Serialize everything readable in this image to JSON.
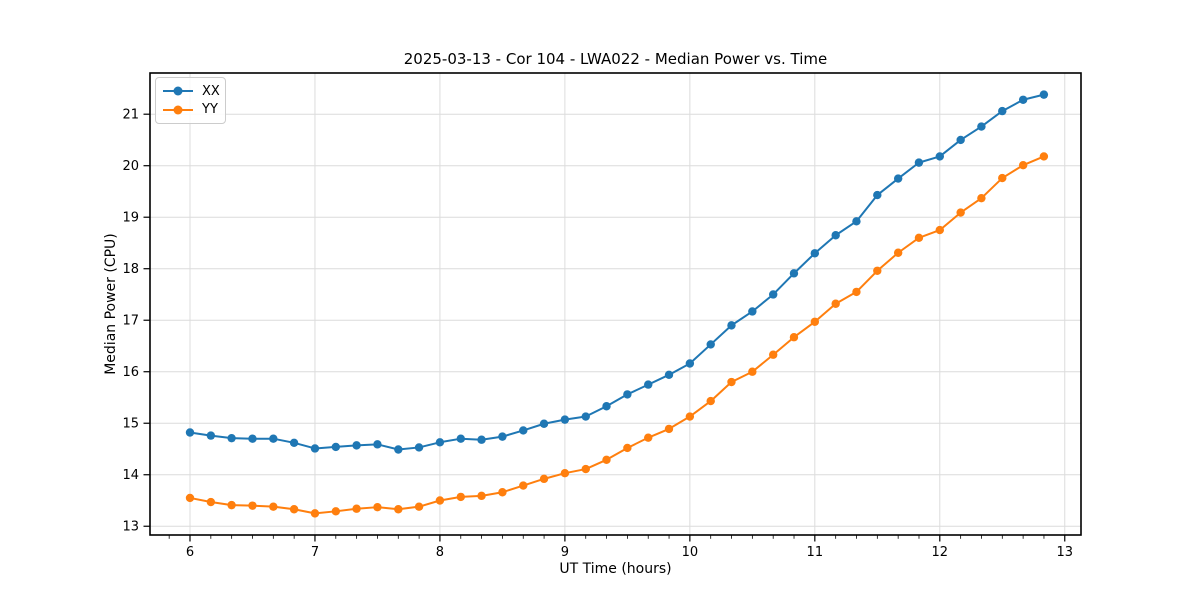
{
  "figure": {
    "background": "#ffffff",
    "spine_color": "#000000",
    "grid_color": "#dcdcdc",
    "tick_color": "#000000"
  },
  "chart_data": {
    "type": "line",
    "title": "2025-03-13 - Cor 104 - LWA022 - Median Power vs. Time",
    "xlabel": "UT Time (hours)",
    "ylabel": "Median Power (CPU)",
    "grid": true,
    "legend_position": "upper left",
    "xlim": [
      5.68,
      13.13
    ],
    "ylim": [
      12.83,
      21.8
    ],
    "x_ticks": [
      6,
      7,
      8,
      9,
      10,
      11,
      12,
      13
    ],
    "y_ticks": [
      13,
      14,
      15,
      16,
      17,
      18,
      19,
      20,
      21
    ],
    "x_minor_tick_step": 0.16667,
    "x": [
      6.0,
      6.167,
      6.333,
      6.5,
      6.667,
      6.833,
      7.0,
      7.167,
      7.333,
      7.5,
      7.667,
      7.833,
      8.0,
      8.167,
      8.333,
      8.5,
      8.667,
      8.833,
      9.0,
      9.167,
      9.333,
      9.5,
      9.667,
      9.833,
      10.0,
      10.167,
      10.333,
      10.5,
      10.667,
      10.833,
      11.0,
      11.167,
      11.333,
      11.5,
      11.667,
      11.833,
      12.0,
      12.167,
      12.333,
      12.5,
      12.667,
      12.833
    ],
    "series": [
      {
        "name": "XX",
        "color": "#1f77b4",
        "values": [
          14.82,
          14.76,
          14.71,
          14.7,
          14.7,
          14.62,
          14.51,
          14.54,
          14.57,
          14.59,
          14.49,
          14.53,
          14.63,
          14.7,
          14.68,
          14.74,
          14.86,
          14.99,
          15.07,
          15.13,
          15.33,
          15.56,
          15.75,
          15.94,
          16.16,
          16.53,
          16.9,
          17.17,
          17.5,
          17.91,
          18.3,
          18.65,
          18.92,
          19.43,
          19.75,
          20.06,
          20.18,
          20.5,
          20.76,
          21.06,
          21.28,
          21.38
        ]
      },
      {
        "name": "YY",
        "color": "#ff7f0e",
        "values": [
          13.55,
          13.47,
          13.41,
          13.4,
          13.38,
          13.33,
          13.25,
          13.29,
          13.34,
          13.37,
          13.33,
          13.38,
          13.5,
          13.57,
          13.59,
          13.66,
          13.79,
          13.92,
          14.03,
          14.11,
          14.29,
          14.52,
          14.72,
          14.89,
          15.13,
          15.43,
          15.8,
          16.0,
          16.33,
          16.67,
          16.97,
          17.32,
          17.55,
          17.96,
          18.31,
          18.6,
          18.75,
          19.09,
          19.37,
          19.76,
          20.01,
          20.18
        ]
      }
    ]
  }
}
